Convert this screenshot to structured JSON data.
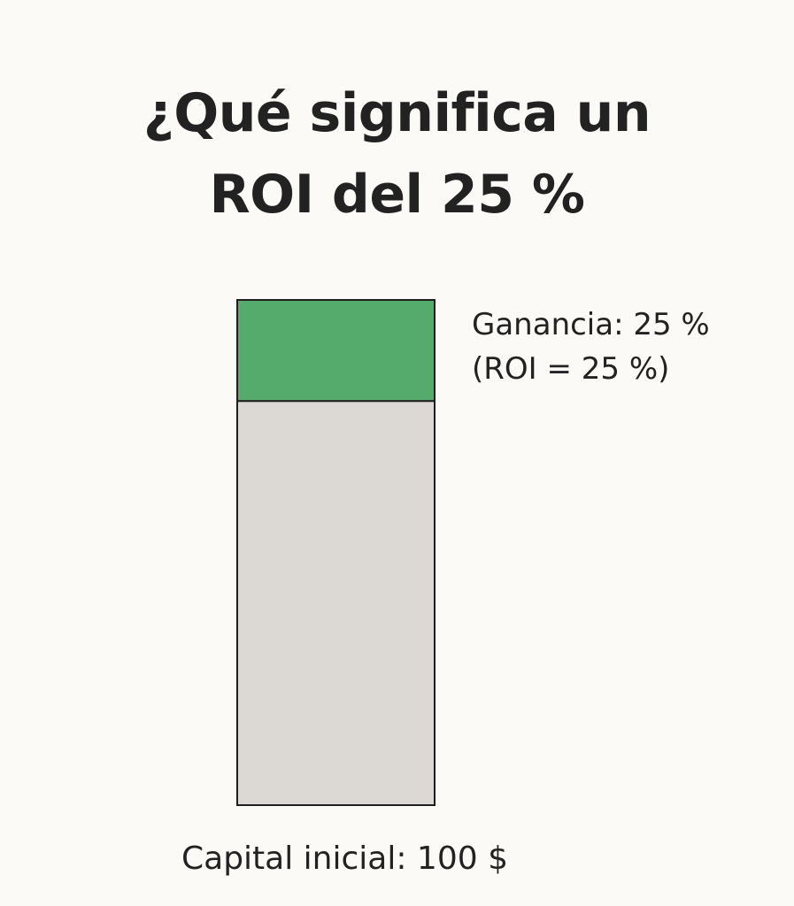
{
  "title": {
    "line1": "¿Qué significa un",
    "line2": "ROI del 25 %"
  },
  "chart_data": {
    "type": "bar",
    "stacked": true,
    "categories": [
      "Capital inicial: 100 $"
    ],
    "series": [
      {
        "name": "Capital inicial",
        "values": [
          100
        ],
        "color": "#dcd9d4"
      },
      {
        "name": "Ganancia",
        "values": [
          25
        ],
        "color": "#55ab6b"
      }
    ],
    "annotations": {
      "gain_line1": "Ganancia: 25 %",
      "gain_line2": "(ROI = 25 %)"
    },
    "xlabel": "Capital inicial: 100 $",
    "ylabel": "",
    "ylim": [
      0,
      125
    ],
    "grid": false
  }
}
